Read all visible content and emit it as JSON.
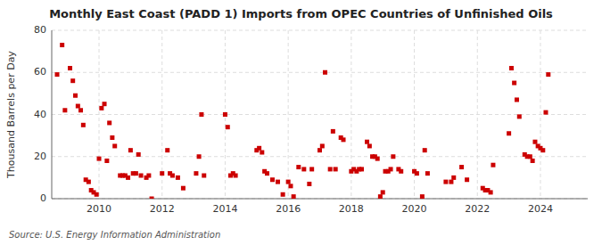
{
  "chart_data": {
    "type": "scatter",
    "title": "Monthly East Coast (PADD 1) Imports from OPEC Countries of Unfinished Oils",
    "ylabel": "Thousand Barrels per Day",
    "source": "Source: U.S. Energy Information Administration",
    "color": "#cc0000",
    "marker": "square",
    "grid": true,
    "xlim": [
      2008.5,
      2025.5
    ],
    "xticks": [
      2010,
      2012,
      2014,
      2016,
      2018,
      2020,
      2022,
      2024
    ],
    "ylim": [
      0,
      80
    ],
    "yticks": [
      0,
      20,
      40,
      60,
      80
    ],
    "x": [
      2008.67,
      2008.83,
      2008.92,
      2009.08,
      2009.17,
      2009.25,
      2009.33,
      2009.42,
      2009.5,
      2009.58,
      2009.67,
      2009.75,
      2009.83,
      2009.92,
      2010.0,
      2010.08,
      2010.17,
      2010.25,
      2010.33,
      2010.42,
      2010.5,
      2010.67,
      2010.75,
      2010.83,
      2010.92,
      2011.0,
      2011.08,
      2011.17,
      2011.25,
      2011.33,
      2011.5,
      2011.58,
      2011.67,
      2012.0,
      2012.17,
      2012.25,
      2012.33,
      2012.5,
      2012.67,
      2013.08,
      2013.17,
      2013.25,
      2013.33,
      2014.0,
      2014.08,
      2014.17,
      2014.25,
      2014.33,
      2015.0,
      2015.08,
      2015.17,
      2015.25,
      2015.33,
      2015.5,
      2015.67,
      2015.83,
      2016.0,
      2016.08,
      2016.17,
      2016.33,
      2016.5,
      2016.67,
      2016.75,
      2017.0,
      2017.08,
      2017.17,
      2017.33,
      2017.42,
      2017.5,
      2017.67,
      2017.75,
      2018.0,
      2018.08,
      2018.17,
      2018.25,
      2018.33,
      2018.5,
      2018.58,
      2018.67,
      2018.75,
      2018.83,
      2018.92,
      2019.0,
      2019.08,
      2019.17,
      2019.25,
      2019.33,
      2019.5,
      2019.58,
      2020.0,
      2020.08,
      2020.25,
      2020.33,
      2020.42,
      2021.0,
      2021.17,
      2021.25,
      2021.5,
      2021.67,
      2022.17,
      2022.25,
      2022.33,
      2022.42,
      2022.5,
      2023.0,
      2023.08,
      2023.17,
      2023.25,
      2023.33,
      2023.5,
      2023.58,
      2023.67,
      2023.75,
      2023.83,
      2023.92,
      2024.0,
      2024.08,
      2024.17,
      2024.25
    ],
    "values": [
      59,
      73,
      42,
      62,
      56,
      49,
      44,
      42,
      35,
      9,
      8,
      4,
      3,
      2,
      19,
      43,
      45,
      18,
      36,
      29,
      25,
      11,
      11,
      11,
      10,
      23,
      12,
      12,
      21,
      11,
      10,
      11,
      0,
      12,
      23,
      12,
      11,
      10,
      5,
      12,
      20,
      40,
      11,
      40,
      34,
      11,
      12,
      11,
      23,
      24,
      22,
      13,
      12,
      9,
      8,
      2,
      8,
      6,
      1,
      15,
      14,
      7,
      14,
      23,
      25,
      60,
      14,
      32,
      14,
      29,
      28,
      13,
      14,
      13,
      14,
      14,
      27,
      25,
      20,
      20,
      19,
      1,
      3,
      13,
      13,
      14,
      20,
      14,
      13,
      13,
      12,
      1,
      23,
      12,
      8,
      8,
      10,
      15,
      9,
      5,
      4,
      4,
      3,
      16,
      31,
      62,
      55,
      47,
      39,
      21,
      20,
      20,
      18,
      27,
      25,
      24,
      23,
      41,
      59
    ]
  }
}
